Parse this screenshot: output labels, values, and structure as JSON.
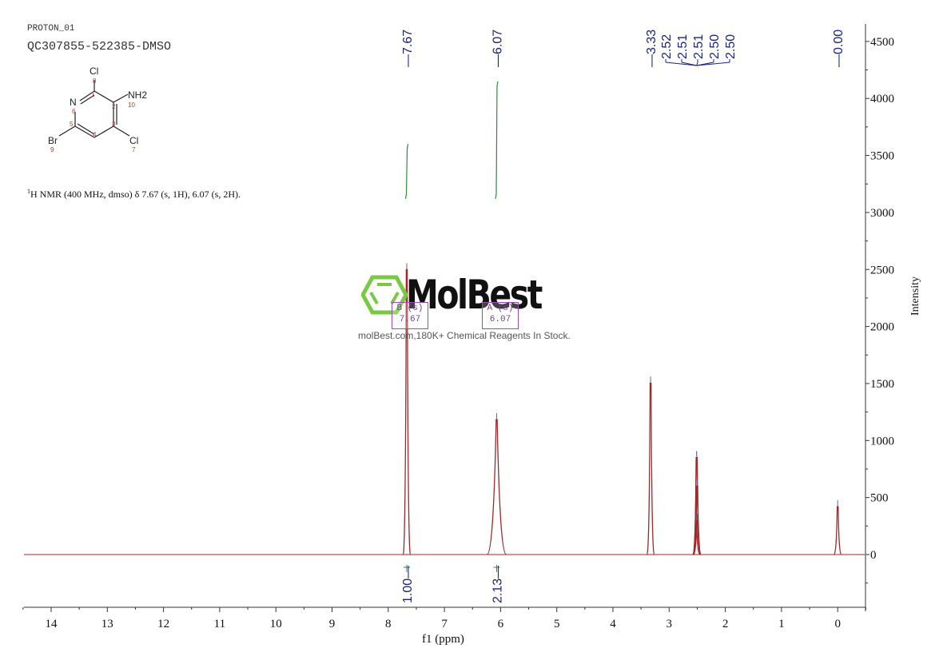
{
  "header": {
    "experiment": "PROTON_01",
    "sample": "QC307855-522385-DMSO"
  },
  "structure": {
    "atoms": [
      {
        "label": "Cl",
        "num": "8"
      },
      {
        "label": "NH2",
        "num": "10"
      },
      {
        "label": "N",
        "num": "6"
      },
      {
        "label": "Br",
        "num": "9"
      },
      {
        "label": "Cl",
        "num": "7"
      }
    ],
    "ring_numbers": [
      "1",
      "2",
      "3",
      "4",
      "5",
      "6"
    ]
  },
  "summary_text": "1H NMR (400 MHz, dmso) δ 7.67 (s, 1H), 6.07 (s, 2H).",
  "summary_sup": "1",
  "summary_rest": "H NMR (400 MHz, dmso) δ 7.67 (s, 1H), 6.07 (s, 2H).",
  "watermark": {
    "brand": "MolBest",
    "tagline": "molBest.com,180K+ Chemical Reagents In Stock.",
    "logo_color": "#7ac943"
  },
  "peak_boxes": [
    {
      "label": "B (s)",
      "value": "7.67"
    },
    {
      "label": "A (s)",
      "value": "6.07"
    }
  ],
  "colors": {
    "spectrum": "#a0282a",
    "peak_label": "#1a237e",
    "integral": "#2e8b3a",
    "axis": "#333333"
  },
  "chart_data": {
    "type": "line",
    "title": "PROTON_01 QC307855-522385-DMSO",
    "xlabel": "f1 (ppm)",
    "ylabel": "Intensity",
    "xlim": [
      14.5,
      -0.5
    ],
    "ylim": [
      -450,
      4650
    ],
    "x_reversed": true,
    "xticks": [
      14,
      13,
      12,
      11,
      10,
      9,
      8,
      7,
      6,
      5,
      4,
      3,
      2,
      1,
      0
    ],
    "yticks": [
      0,
      500,
      1000,
      1500,
      2000,
      2500,
      3000,
      3500,
      4000,
      4500
    ],
    "grid": false,
    "peaks": [
      {
        "ppm": 7.67,
        "intensity": 2500,
        "label": "7.67"
      },
      {
        "ppm": 6.07,
        "intensity": 1185,
        "label": "6.07"
      },
      {
        "ppm": 3.33,
        "intensity": 1505,
        "label": "3.33"
      },
      {
        "ppm": 2.52,
        "intensity": 300,
        "label": "2.52"
      },
      {
        "ppm": 2.51,
        "intensity": 850,
        "label": "2.51"
      },
      {
        "ppm": 2.51,
        "intensity": 850,
        "label": "2.51"
      },
      {
        "ppm": 2.5,
        "intensity": 600,
        "label": "2.50"
      },
      {
        "ppm": 2.5,
        "intensity": 300,
        "label": "2.50"
      },
      {
        "ppm": 0.0,
        "intensity": 420,
        "label": "0.00"
      }
    ],
    "peak_labels_top": [
      "7.67",
      "6.07",
      "3.33",
      "2.52",
      "2.51",
      "2.51",
      "2.50",
      "2.50",
      "0.00"
    ],
    "integrals": [
      {
        "ppm": 7.67,
        "value": "1.00",
        "curve_top": 3600,
        "curve_bottom": 3120
      },
      {
        "ppm": 6.07,
        "value": "2.13",
        "curve_top": 4150,
        "curve_bottom": 3120
      }
    ]
  }
}
